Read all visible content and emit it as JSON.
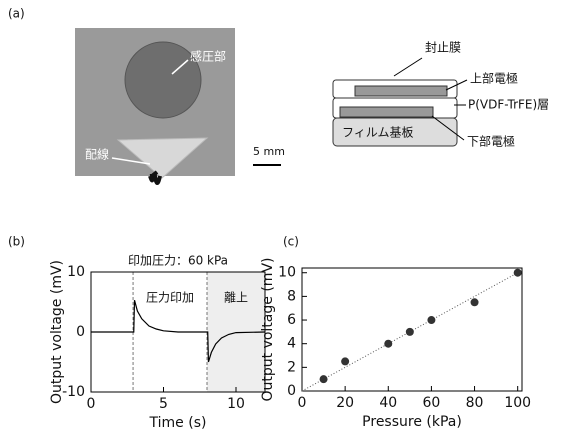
{
  "panel_labels": [
    "(a)",
    "(b)",
    "(c)"
  ],
  "photo": {
    "sensor_label": "感圧部",
    "wire_label": "配線",
    "scale_bar": "5 mm"
  },
  "diagram": {
    "sealing_film": "封止膜",
    "top_electrode": "上部電極",
    "piezo_layer": "P(VDF-TrFE)層",
    "bottom_electrode": "下部電極",
    "substrate": "フィルム基板"
  },
  "chart_data": [
    {
      "type": "line",
      "title": "印加圧力：60 kPa",
      "xlabel": "Time (s)",
      "ylabel": "Output voltage (mV)",
      "annotations": [
        "圧力印加",
        "離上"
      ],
      "x": [
        0,
        2.9,
        2.95,
        3.0,
        3.2,
        3.5,
        4,
        4.5,
        5,
        6,
        8.0,
        8.05,
        8.1,
        8.3,
        8.6,
        9,
        9.5,
        10,
        12
      ],
      "values": [
        0,
        0,
        0,
        5.3,
        3.5,
        2.2,
        1.0,
        0.5,
        0.2,
        0,
        0,
        0,
        -5.0,
        -3.4,
        -2.0,
        -1.0,
        -0.4,
        -0.1,
        0
      ],
      "color": "#000000",
      "vlines": [
        2.9,
        8.0
      ],
      "xlim": [
        0,
        12
      ],
      "xticks": [
        0,
        5,
        10
      ],
      "ylim": [
        -10,
        10
      ],
      "yticks": [
        -10,
        0,
        10
      ]
    },
    {
      "type": "scatter",
      "xlabel": "Pressure (kPa)",
      "ylabel": "Output voltage (mV)",
      "x": [
        10,
        20,
        40,
        50,
        60,
        80,
        100
      ],
      "values": [
        1,
        2.5,
        4,
        5,
        6,
        7.5,
        10
      ],
      "color": "#333333",
      "fit_x": [
        0,
        102
      ],
      "fit_y": [
        0,
        10.2
      ],
      "xlim": [
        0,
        102
      ],
      "xticks": [
        0,
        20,
        40,
        60,
        80,
        100
      ],
      "ylim": [
        0,
        10.4
      ],
      "yticks": [
        0,
        2,
        4,
        6,
        8,
        10
      ]
    }
  ]
}
